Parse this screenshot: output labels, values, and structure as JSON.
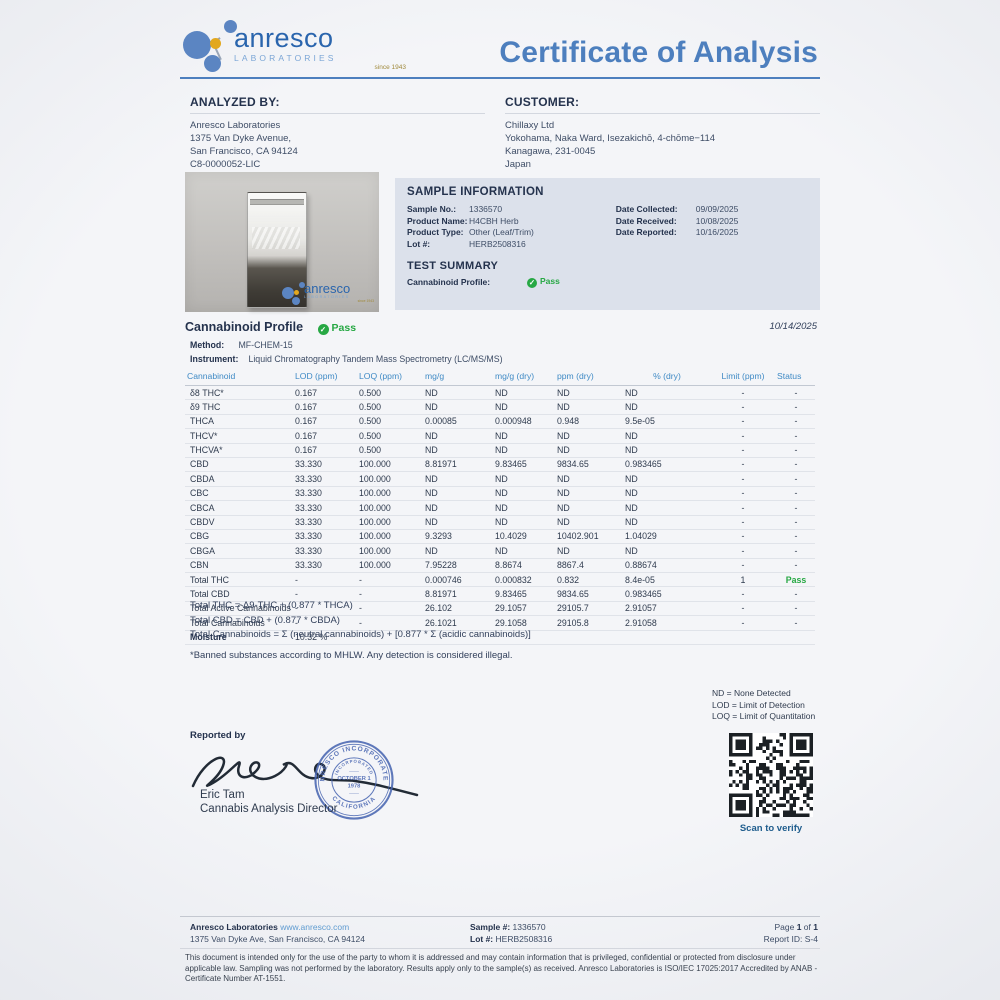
{
  "header": {
    "brand": {
      "name": "anresco",
      "subtitle": "LABORATORIES",
      "since": "since 1943"
    },
    "title": "Certificate of Analysis"
  },
  "analyzed_by": {
    "heading": "ANALYZED BY:",
    "lines": [
      "Anresco Laboratories",
      "1375 Van Dyke Avenue,",
      "San Francisco, CA 94124",
      "C8-0000052-LIC"
    ]
  },
  "customer": {
    "heading": "CUSTOMER:",
    "lines": [
      "Chillaxy Ltd",
      "Yokohama, Naka Ward, Isezakichō, 4-chōme−114",
      "Kanagawa, 231-0045",
      "Japan"
    ]
  },
  "sample_info": {
    "heading": "SAMPLE INFORMATION",
    "left_fields": [
      {
        "label": "Sample No.:",
        "value": "1336570"
      },
      {
        "label": "Product Name:",
        "value": "H4CBH Herb"
      },
      {
        "label": "Product Type:",
        "value": "Other (Leaf/Trim)"
      },
      {
        "label": "Lot #:",
        "value": "HERB2508316"
      }
    ],
    "right_fields": [
      {
        "label": "Date Collected:",
        "value": "09/09/2025"
      },
      {
        "label": "Date Received:",
        "value": "10/08/2025"
      },
      {
        "label": "Date Reported:",
        "value": "10/16/2025"
      }
    ]
  },
  "test_summary": {
    "heading": "TEST SUMMARY",
    "item_label": "Cannabinoid Profile:",
    "item_status": "Pass",
    "check_glyph": "✓"
  },
  "profile_section": {
    "title": "Cannabinoid Profile",
    "status": "Pass",
    "check_glyph": "✓",
    "date": "10/14/2025",
    "method_label": "Method:",
    "method_value": "MF-CHEM-15",
    "instrument_label": "Instrument:",
    "instrument_value": "Liquid Chromatography Tandem Mass Spectrometry (LC/MS/MS)"
  },
  "table": {
    "headers": [
      "Cannabinoid",
      "LOD (ppm)",
      "LOQ (ppm)",
      "mg/g",
      "mg/g (dry)",
      "ppm (dry)",
      "% (dry)",
      "Limit (ppm)",
      "Status"
    ],
    "rows": [
      [
        "δ8 THC*",
        "0.167",
        "0.500",
        "ND",
        "ND",
        "ND",
        "ND",
        "-",
        "-"
      ],
      [
        "δ9 THC",
        "0.167",
        "0.500",
        "ND",
        "ND",
        "ND",
        "ND",
        "-",
        "-"
      ],
      [
        "THCA",
        "0.167",
        "0.500",
        "0.00085",
        "0.000948",
        "0.948",
        "9.5e-05",
        "-",
        "-"
      ],
      [
        "THCV*",
        "0.167",
        "0.500",
        "ND",
        "ND",
        "ND",
        "ND",
        "-",
        "-"
      ],
      [
        "THCVA*",
        "0.167",
        "0.500",
        "ND",
        "ND",
        "ND",
        "ND",
        "-",
        "-"
      ],
      [
        "CBD",
        "33.330",
        "100.000",
        "8.81971",
        "9.83465",
        "9834.65",
        "0.983465",
        "-",
        "-"
      ],
      [
        "CBDA",
        "33.330",
        "100.000",
        "ND",
        "ND",
        "ND",
        "ND",
        "-",
        "-"
      ],
      [
        "CBC",
        "33.330",
        "100.000",
        "ND",
        "ND",
        "ND",
        "ND",
        "-",
        "-"
      ],
      [
        "CBCA",
        "33.330",
        "100.000",
        "ND",
        "ND",
        "ND",
        "ND",
        "-",
        "-"
      ],
      [
        "CBDV",
        "33.330",
        "100.000",
        "ND",
        "ND",
        "ND",
        "ND",
        "-",
        "-"
      ],
      [
        "CBG",
        "33.330",
        "100.000",
        "9.3293",
        "10.4029",
        "10402.901",
        "1.04029",
        "-",
        "-"
      ],
      [
        "CBGA",
        "33.330",
        "100.000",
        "ND",
        "ND",
        "ND",
        "ND",
        "-",
        "-"
      ],
      [
        "CBN",
        "33.330",
        "100.000",
        "7.95228",
        "8.8674",
        "8867.4",
        "0.88674",
        "-",
        "-"
      ],
      [
        "Total THC",
        "-",
        "-",
        "0.000746",
        "0.000832",
        "0.832",
        "8.4e-05",
        "1",
        "Pass"
      ],
      [
        "Total CBD",
        "-",
        "-",
        "8.81971",
        "9.83465",
        "9834.65",
        "0.983465",
        "-",
        "-"
      ],
      [
        "Total Active Cannabinoids",
        "-",
        "-",
        "26.102",
        "29.1057",
        "29105.7",
        "2.91057",
        "-",
        "-"
      ],
      [
        "Total Cannabinoids",
        "-",
        "-",
        "26.1021",
        "29.1058",
        "29105.8",
        "2.91058",
        "-",
        "-"
      ],
      [
        "Moisture",
        "10.32 %",
        "",
        "",
        "",
        "",
        "",
        "",
        ""
      ]
    ]
  },
  "formulas": [
    "Total THC = Δ9-THC + (0.877 * THCA)",
    "Total CBD = CBD + (0.877 * CBDA)",
    "Total Cannabinoids = Σ (neutral cannabinoids) + [0.877 * Σ (acidic cannabinoids)]"
  ],
  "footnote": "*Banned substances according to MHLW. Any detection is considered illegal.",
  "legend": [
    "ND = None Detected",
    "LOD = Limit of Detection",
    "LOQ = Limit of Quantitation"
  ],
  "signature": {
    "reported_by": "Reported by",
    "name": "Eric Tam",
    "title": "Cannabis Analysis Director"
  },
  "stamp": {
    "ring_top": "ANRESCO INCORPORATED",
    "inner": "INCORPORATED",
    "center1": "OCTOBER 1",
    "center2": "1978",
    "bottom": "CALIFORNIA"
  },
  "qr": {
    "caption": "Scan to verify"
  },
  "photo_watermark": {
    "name": "anresco",
    "subtitle": "LABORATORIES",
    "since": "since 1943"
  },
  "footer": {
    "company": "Anresco Laboratories",
    "website": "www.anresco.com",
    "address": "1375 Van Dyke Ave, San Francisco, CA 94124",
    "sample_label": "Sample #:",
    "sample_value": "1336570",
    "lot_label": "Lot #:",
    "lot_value": "HERB2508316",
    "page_label": "Page",
    "page_current": "1",
    "page_of": "of",
    "page_total": "1",
    "report_id_label": "Report ID:",
    "report_id_value": "S-4"
  },
  "disclaimer": "This document is intended only for the use of the party to whom it is addressed and may contain information that is privileged, confidential or protected from disclosure under applicable law. Sampling was not performed by the laboratory. Results apply only to the sample(s) as received. Anresco Laboratories is ISO/IEC 17025:2017 Accredited by ANAB - Certificate Number AT-1551."
}
